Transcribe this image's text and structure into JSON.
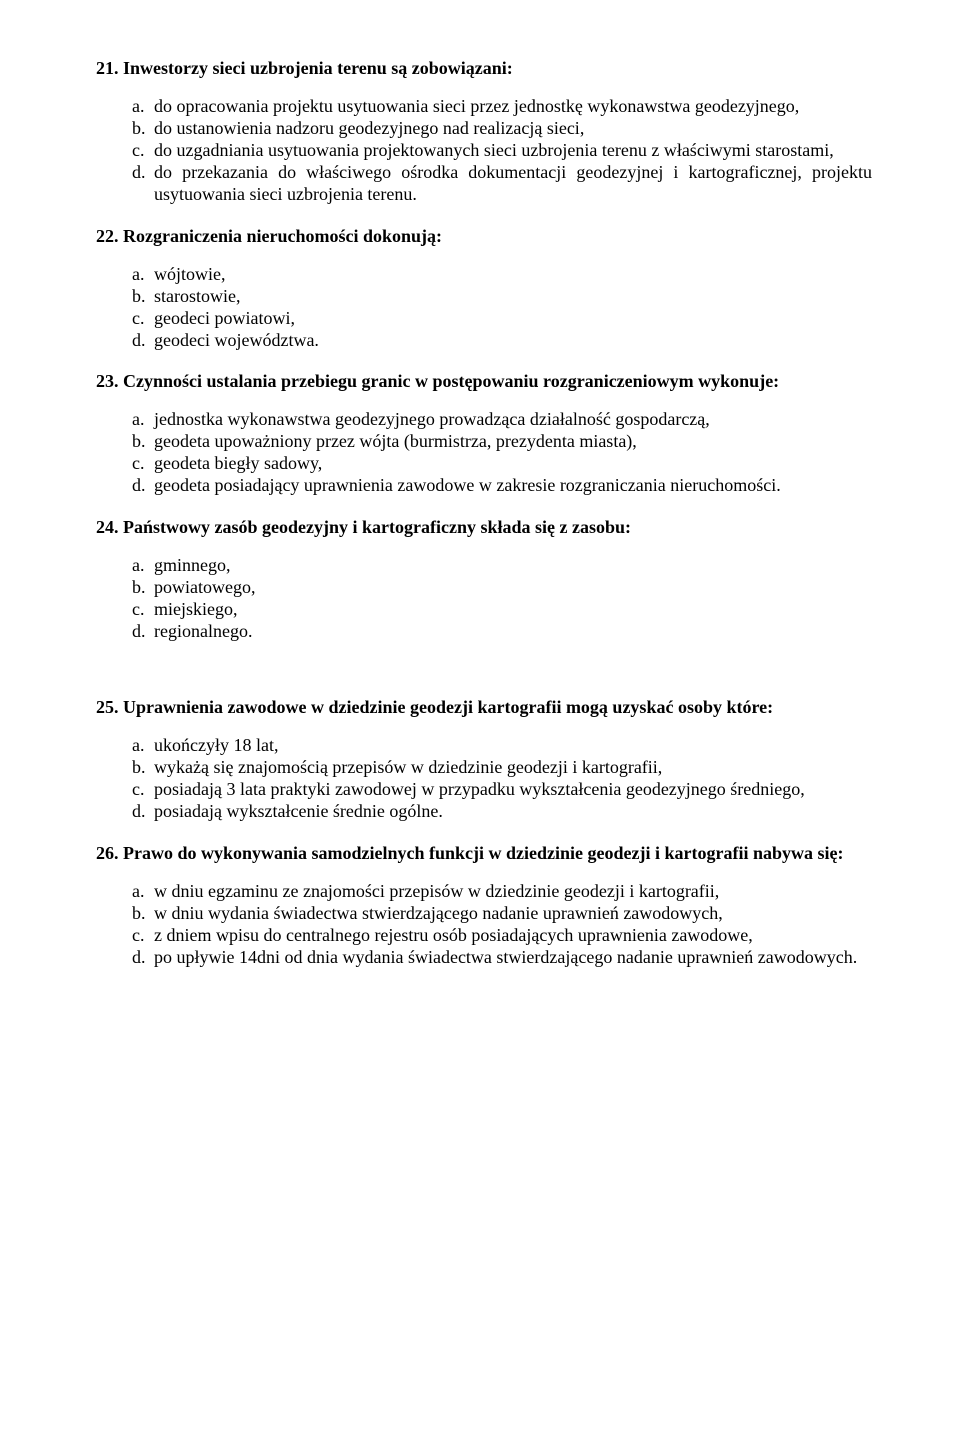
{
  "questions": [
    {
      "num": "21.",
      "title": "Inwestorzy sieci uzbrojenia terenu są zobowiązani:",
      "options": [
        {
          "label": "a.",
          "text": "do opracowania projektu usytuowania sieci przez jednostkę wykonawstwa geodezyjnego,"
        },
        {
          "label": "b.",
          "text": "do ustanowienia nadzoru geodezyjnego nad realizacją sieci,"
        },
        {
          "label": "c.",
          "text": "do uzgadniania usytuowania projektowanych sieci uzbrojenia terenu z właściwymi starostami,"
        },
        {
          "label": "d.",
          "text": "do przekazania do właściwego ośrodka dokumentacji geodezyjnej i kartograficznej, projektu usytuowania sieci uzbrojenia terenu."
        }
      ]
    },
    {
      "num": "22.",
      "title": "Rozgraniczenia nieruchomości dokonują:",
      "options": [
        {
          "label": "a.",
          "text": "wójtowie,"
        },
        {
          "label": "b.",
          "text": "starostowie,"
        },
        {
          "label": "c.",
          "text": "geodeci powiatowi,"
        },
        {
          "label": "d.",
          "text": "geodeci województwa."
        }
      ]
    },
    {
      "num": "23.",
      "title": "Czynności ustalania przebiegu granic w postępowaniu rozgraniczeniowym wykonuje:",
      "options": [
        {
          "label": "a.",
          "text": "jednostka wykonawstwa geodezyjnego prowadząca działalność gospodarczą,"
        },
        {
          "label": "b.",
          "text": "geodeta upoważniony przez wójta (burmistrza, prezydenta miasta),"
        },
        {
          "label": "c.",
          "text": "geodeta biegły sadowy,"
        },
        {
          "label": "d.",
          "text": "geodeta posiadający uprawnienia zawodowe w zakresie rozgraniczania nieruchomości."
        }
      ]
    },
    {
      "num": "24.",
      "title": "Państwowy zasób geodezyjny i kartograficzny składa się z zasobu:",
      "options": [
        {
          "label": "a.",
          "text": "gminnego,"
        },
        {
          "label": "b.",
          "text": "powiatowego,"
        },
        {
          "label": "c.",
          "text": "miejskiego,"
        },
        {
          "label": "d.",
          "text": "regionalnego."
        }
      ]
    },
    {
      "num": "25.",
      "title": "Uprawnienia zawodowe w dziedzinie geodezji kartografii mogą uzyskać osoby które:",
      "options": [
        {
          "label": "a.",
          "text": "ukończyły 18 lat,"
        },
        {
          "label": "b.",
          "text": "wykażą się znajomością przepisów w dziedzinie geodezji i kartografii,"
        },
        {
          "label": "c.",
          "text": "posiadają 3 lata praktyki zawodowej w przypadku wykształcenia geodezyjnego średniego,"
        },
        {
          "label": "d.",
          "text": "posiadają wykształcenie średnie ogólne."
        }
      ]
    },
    {
      "num": "26.",
      "title": "Prawo do wykonywania samodzielnych funkcji w dziedzinie geodezji i kartografii nabywa się:",
      "options": [
        {
          "label": "a.",
          "text": "w dniu egzaminu ze znajomości przepisów w dziedzinie geodezji i kartografii,"
        },
        {
          "label": "b.",
          "text": "w dniu wydania świadectwa stwierdzającego nadanie uprawnień zawodowych,"
        },
        {
          "label": "c.",
          "text": "z dniem wpisu do centralnego rejestru osób posiadających uprawnienia zawodowe,"
        },
        {
          "label": "d.",
          "text": "po upływie 14dni od dnia wydania świadectwa stwierdzającego nadanie uprawnień zawodowych."
        }
      ]
    }
  ]
}
